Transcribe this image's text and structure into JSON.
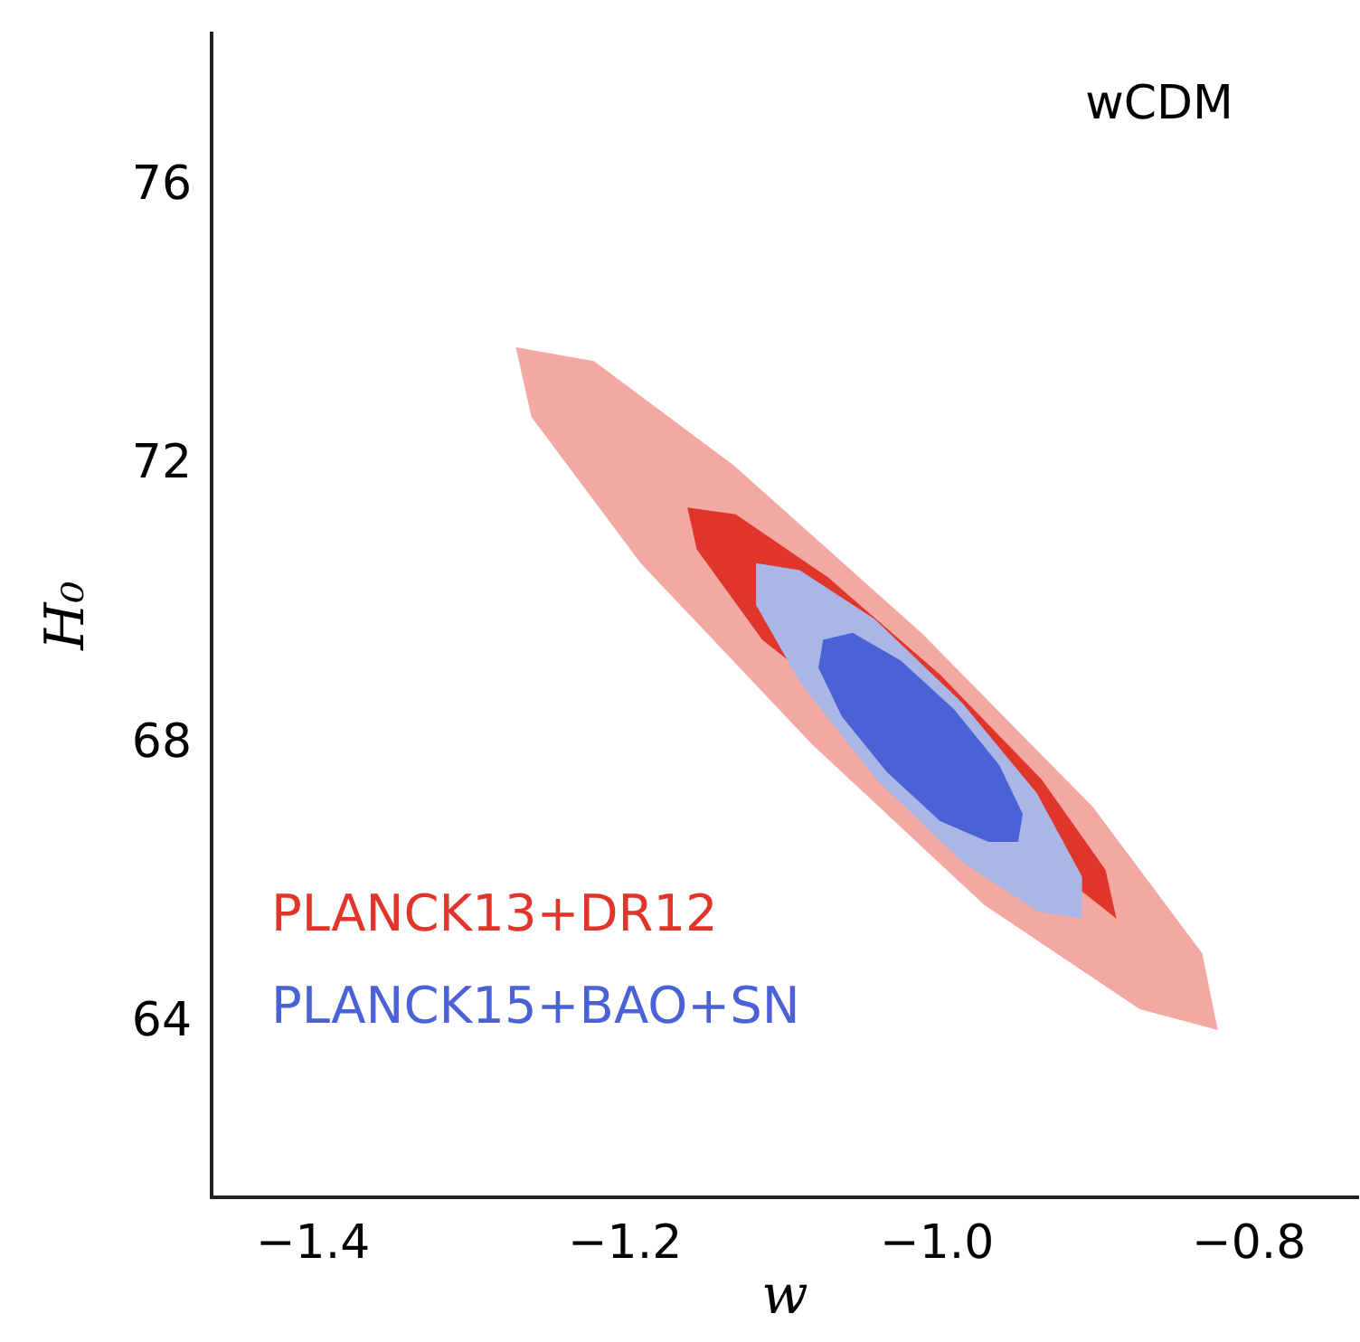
{
  "chart_data": {
    "type": "area",
    "xlabel": "w",
    "ylabel": "H₀",
    "annotations": [
      "wCDM"
    ],
    "xlim": [
      -1.465,
      -0.73
    ],
    "ylim": [
      61.5,
      78.2
    ],
    "xticks": [
      {
        "value": -1.4,
        "label": "−1.4"
      },
      {
        "value": -1.2,
        "label": "−1.2"
      },
      {
        "value": -1.0,
        "label": "−1.0"
      },
      {
        "value": -0.8,
        "label": "−0.8"
      }
    ],
    "yticks": [
      64,
      68,
      72,
      76
    ],
    "grid": false,
    "legend": "bottom left",
    "series": [
      {
        "color": "#f2a9a3",
        "x": [
          -0.82,
          -0.83,
          -0.9,
          -1.01,
          -1.13,
          -1.22,
          -1.27,
          -1.26,
          -1.19,
          -1.08,
          -0.97,
          -0.87,
          -0.82
        ],
        "values": [
          63.9,
          65.0,
          67.1,
          69.6,
          72.0,
          73.5,
          73.7,
          72.7,
          70.6,
          68.0,
          65.7,
          64.2,
          63.9
        ]
      },
      {
        "name": "PLANCK13+DR12",
        "color": "#e0352b",
        "x": [
          -0.885,
          -0.892,
          -0.933,
          -0.998,
          -1.07,
          -1.129,
          -1.16,
          -1.154,
          -1.112,
          -1.047,
          -0.975,
          -0.916,
          -0.885
        ],
        "values": [
          65.5,
          66.2,
          67.5,
          69.0,
          70.4,
          71.3,
          71.4,
          70.8,
          69.5,
          null,
          null,
          null,
          65.5
        ]
      },
      {
        "color": "#a9b6e6",
        "x": [
          -0.907,
          -0.907,
          -0.936,
          -0.984,
          -1.04,
          -1.088,
          -1.116,
          -1.116,
          -1.088,
          -1.039,
          -0.983,
          -0.935,
          -0.907
        ],
        "values": [
          65.5,
          66.1,
          67.3,
          68.6,
          69.8,
          70.5,
          70.6,
          70.0,
          68.9,
          67.5,
          66.3,
          65.6,
          65.5
        ]
      },
      {
        "name": "PLANCK15+BAO+SN",
        "color": "#4a62d6",
        "x": [
          -0.948,
          -0.945,
          -0.96,
          -0.989,
          -1.023,
          -1.054,
          -1.073,
          -1.076,
          -1.061,
          -1.032,
          -0.998,
          -0.967,
          -0.948
        ],
        "values": [
          66.6,
          67.0,
          67.7,
          68.5,
          69.2,
          69.6,
          69.5,
          69.1,
          68.4,
          67.6,
          66.9,
          66.6,
          66.6
        ]
      }
    ]
  }
}
